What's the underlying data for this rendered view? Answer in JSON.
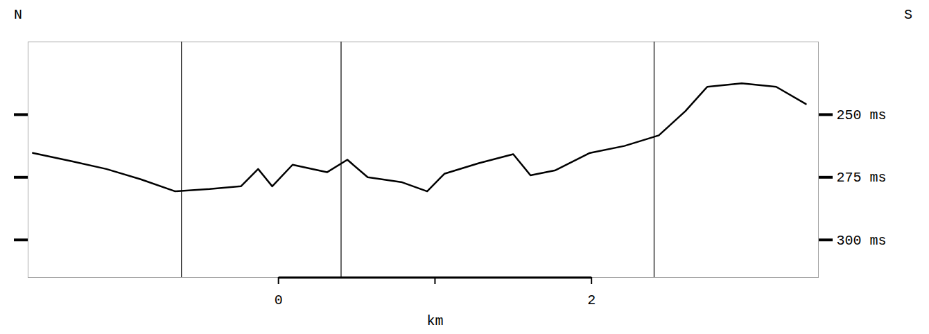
{
  "chart_data": {
    "type": "line",
    "color": "#000000",
    "x": [
      -1.57,
      -1.32,
      -1.1,
      -0.88,
      -0.66,
      -0.44,
      -0.24,
      -0.13,
      -0.04,
      0.09,
      0.31,
      0.44,
      0.57,
      0.79,
      0.95,
      1.06,
      1.28,
      1.5,
      1.61,
      1.77,
      1.99,
      2.21,
      2.43,
      2.6,
      2.74,
      2.96,
      3.18,
      3.37
    ],
    "values": [
      265.3,
      268.6,
      271.7,
      275.8,
      280.6,
      279.7,
      278.6,
      271.7,
      278.6,
      270.0,
      273.0,
      268.0,
      275.0,
      277.0,
      280.6,
      273.6,
      269.4,
      265.8,
      274.2,
      272.2,
      265.3,
      262.5,
      258.3,
      248.6,
      238.9,
      237.5,
      238.9,
      245.8
    ],
    "xlim": [
      -1.6,
      3.45
    ],
    "xticks": [
      0,
      2
    ],
    "minor_xticks": [
      1
    ],
    "xlabel": "km",
    "ylim": [
      221,
      315
    ],
    "yticks": [
      {
        "value": 250,
        "label": "250 ms"
      },
      {
        "value": 275,
        "label": "275 ms"
      },
      {
        "value": 300,
        "label": "300 ms"
      }
    ],
    "fix_marks": [
      -0.62,
      0.4,
      2.4
    ],
    "direction_labels": {
      "left": "N",
      "right": "S"
    },
    "grid": false
  }
}
